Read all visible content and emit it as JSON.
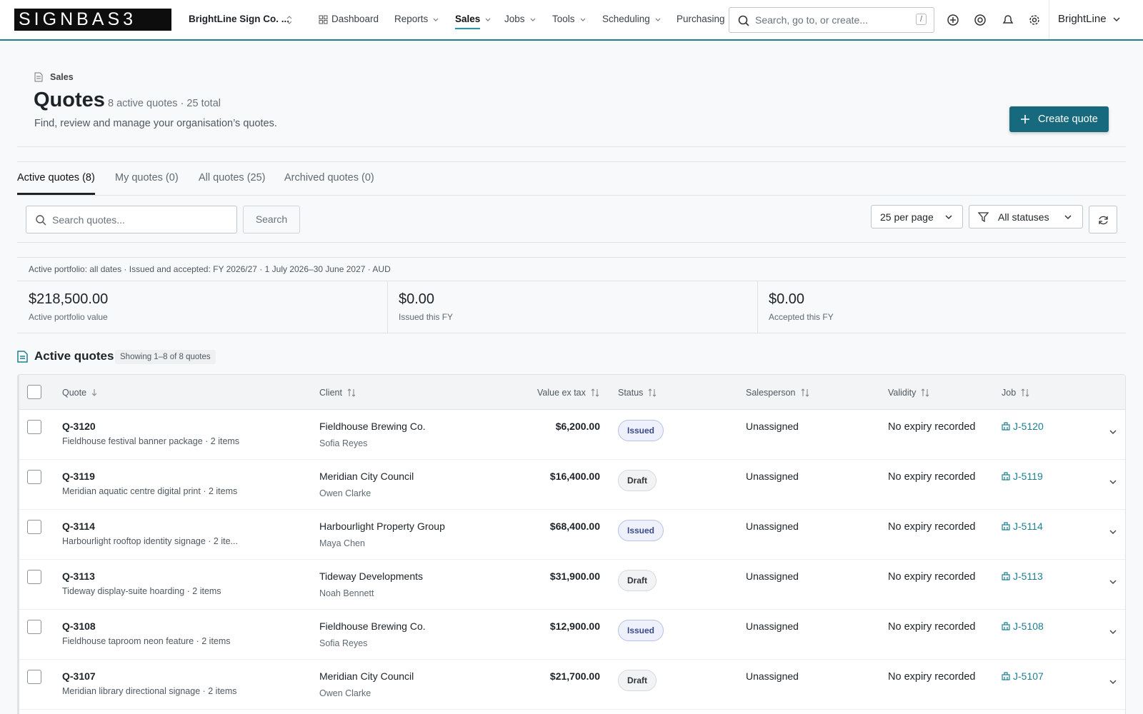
{
  "nav": {
    "logo": "SIGNBAS3",
    "org": "BrightLine Sign Co. ...",
    "items": [
      "Dashboard",
      "Reports",
      "Sales",
      "Jobs",
      "Tools",
      "Scheduling",
      "Purchasing"
    ],
    "active_item": "Sales",
    "search_placeholder": "Search, go to, or create...",
    "search_shortcut": "/",
    "user": "BrightLine"
  },
  "header": {
    "breadcrumb": "Sales",
    "title": "Quotes",
    "counts": "8 active quotes · 25 total",
    "description": "Find, review and manage your organisation’s quotes.",
    "create_button": "Create quote"
  },
  "tabs": [
    "Active quotes (8)",
    "My quotes (0)",
    "All quotes (25)",
    "Archived quotes (0)"
  ],
  "toolbar": {
    "search_placeholder": "Search quotes...",
    "search_button": "Search",
    "per_page": "25 per page",
    "status_filter": "All statuses"
  },
  "summary": {
    "note": "Active portfolio: all dates · Issued and accepted: FY 2026/27 · 1 July 2026–30 June 2027 · AUD",
    "stats": [
      {
        "value": "$218,500.00",
        "label": "Active portfolio value"
      },
      {
        "value": "$0.00",
        "label": "Issued this FY"
      },
      {
        "value": "$0.00",
        "label": "Accepted this FY"
      }
    ]
  },
  "table": {
    "title": "Active quotes",
    "showing": "Showing 1–8 of 8 quotes",
    "columns": [
      "Quote",
      "Client",
      "Value ex tax",
      "Status",
      "Salesperson",
      "Validity",
      "Job"
    ],
    "rows": [
      {
        "quote": "Q-3120",
        "description": "Fieldhouse festival banner package · 2 items",
        "client": "Fieldhouse Brewing Co.",
        "contact": "Sofia Reyes",
        "value": "$6,200.00",
        "status": "Issued",
        "salesperson": "Unassigned",
        "validity": "No expiry recorded",
        "job": "J-5120"
      },
      {
        "quote": "Q-3119",
        "description": "Meridian aquatic centre digital print · 2 items",
        "client": "Meridian City Council",
        "contact": "Owen Clarke",
        "value": "$16,400.00",
        "status": "Draft",
        "salesperson": "Unassigned",
        "validity": "No expiry recorded",
        "job": "J-5119"
      },
      {
        "quote": "Q-3114",
        "description": "Harbourlight rooftop identity signage · 2 ite...",
        "client": "Harbourlight Property Group",
        "contact": "Maya Chen",
        "value": "$68,400.00",
        "status": "Issued",
        "salesperson": "Unassigned",
        "validity": "No expiry recorded",
        "job": "J-5114"
      },
      {
        "quote": "Q-3113",
        "description": "Tideway display-suite hoarding · 2 items",
        "client": "Tideway Developments",
        "contact": "Noah Bennett",
        "value": "$31,900.00",
        "status": "Draft",
        "salesperson": "Unassigned",
        "validity": "No expiry recorded",
        "job": "J-5113"
      },
      {
        "quote": "Q-3108",
        "description": "Fieldhouse taproom neon feature · 2 items",
        "client": "Fieldhouse Brewing Co.",
        "contact": "Sofia Reyes",
        "value": "$12,900.00",
        "status": "Issued",
        "salesperson": "Unassigned",
        "validity": "No expiry recorded",
        "job": "J-5108"
      },
      {
        "quote": "Q-3107",
        "description": "Meridian library directional signage · 2 items",
        "client": "Meridian City Council",
        "contact": "Owen Clarke",
        "value": "$21,700.00",
        "status": "Draft",
        "salesperson": "Unassigned",
        "validity": "No expiry recorded",
        "job": "J-5107"
      }
    ]
  }
}
